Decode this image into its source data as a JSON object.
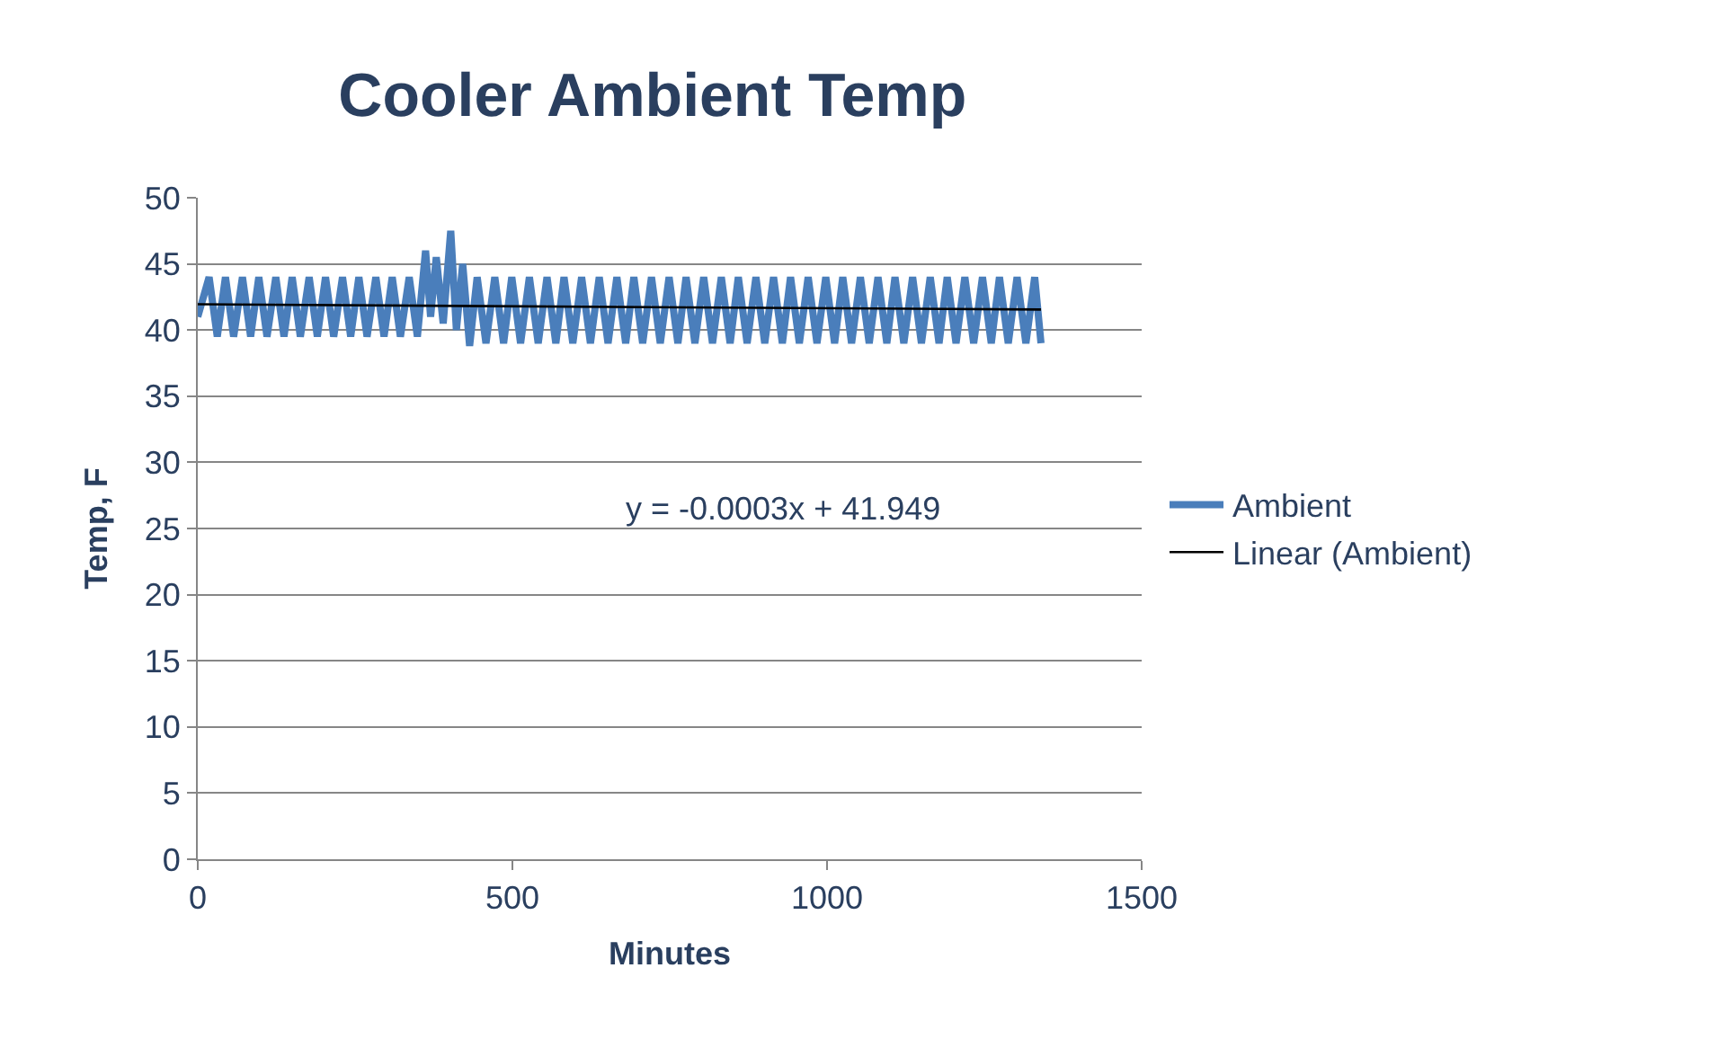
{
  "chart_data": {
    "type": "line",
    "title": "Cooler Ambient Temp",
    "xlabel": "Minutes",
    "ylabel": "Temp, F",
    "xlim": [
      0,
      1500
    ],
    "xticks": [
      0,
      500,
      1000,
      1500
    ],
    "ylim": [
      0,
      50
    ],
    "yticks": [
      0,
      5,
      10,
      15,
      20,
      25,
      30,
      35,
      40,
      45,
      50
    ],
    "grid": "y",
    "legend": "right",
    "marker": "none",
    "annotations": [
      "y = -0.0003x + 41.949"
    ],
    "series": [
      {
        "name": "Ambient",
        "color": "#4a7ebb",
        "x": [
          0,
          18,
          31,
          44,
          57,
          71,
          84,
          97,
          110,
          124,
          137,
          150,
          163,
          177,
          190,
          203,
          216,
          230,
          243,
          256,
          269,
          283,
          296,
          309,
          322,
          336,
          349,
          362,
          370,
          379,
          390,
          402,
          411,
          421,
          432,
          444,
          458,
          472,
          486,
          499,
          513,
          527,
          541,
          555,
          569,
          582,
          596,
          610,
          624,
          638,
          652,
          666,
          680,
          693,
          707,
          721,
          735,
          749,
          763,
          776,
          790,
          804,
          818,
          832,
          846,
          859,
          873,
          887,
          901,
          915,
          929,
          942,
          956,
          970,
          984,
          998,
          1012,
          1025,
          1039,
          1053,
          1067,
          1081,
          1095,
          1108,
          1122,
          1136,
          1150,
          1164,
          1178,
          1191,
          1205,
          1219,
          1233,
          1247,
          1261,
          1274,
          1288,
          1302,
          1316,
          1330,
          1340
        ],
        "values": [
          41,
          44,
          39.5,
          44,
          39.5,
          44,
          39.5,
          44,
          39.5,
          44,
          39.5,
          44,
          39.5,
          44,
          39.5,
          44,
          39.5,
          44,
          39.5,
          44,
          39.5,
          44,
          39.5,
          44,
          39.5,
          44,
          39.5,
          46,
          41,
          45.5,
          40.5,
          47.5,
          40,
          45,
          38.8,
          44,
          39,
          44,
          39,
          44,
          39,
          44,
          39,
          44,
          39,
          44,
          39,
          44,
          39,
          44,
          39,
          44,
          39,
          44,
          39,
          44,
          39,
          44,
          39,
          44,
          39,
          44,
          39,
          44,
          39,
          44,
          39,
          44,
          39,
          44,
          39,
          44,
          39,
          44,
          39,
          44,
          39,
          44,
          39,
          44,
          39,
          44,
          39,
          44,
          39,
          44,
          39,
          44,
          39,
          44,
          39,
          44,
          39,
          44,
          39,
          44,
          39,
          44,
          39,
          44,
          39
        ]
      },
      {
        "name": "Linear (Ambient)",
        "type": "line",
        "color": "#000000",
        "x": [
          0,
          1340
        ],
        "values": [
          41.949,
          41.547
        ]
      }
    ]
  }
}
